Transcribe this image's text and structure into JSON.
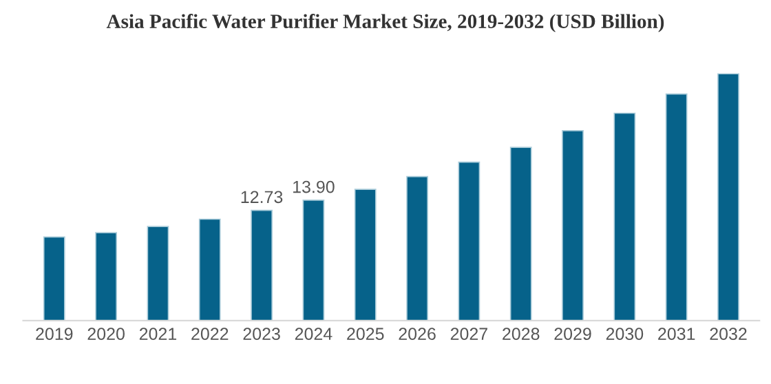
{
  "chart_data": {
    "type": "bar",
    "title": "Asia Pacific Water Purifier Market Size, 2019-2032 (USD Billion)",
    "categories": [
      "2019",
      "2020",
      "2021",
      "2022",
      "2023",
      "2024",
      "2025",
      "2026",
      "2027",
      "2028",
      "2029",
      "2030",
      "2031",
      "2032"
    ],
    "values": [
      9.65,
      10.15,
      10.86,
      11.71,
      12.73,
      13.9,
      15.15,
      16.62,
      18.29,
      20.0,
      21.92,
      23.94,
      26.16,
      28.49
    ],
    "value_labels": [
      null,
      null,
      null,
      null,
      "12.73",
      "13.90",
      null,
      null,
      null,
      null,
      null,
      null,
      null,
      null
    ],
    "color": "#06628a",
    "tick_labels": "x",
    "grid": false,
    "legend": false
  }
}
